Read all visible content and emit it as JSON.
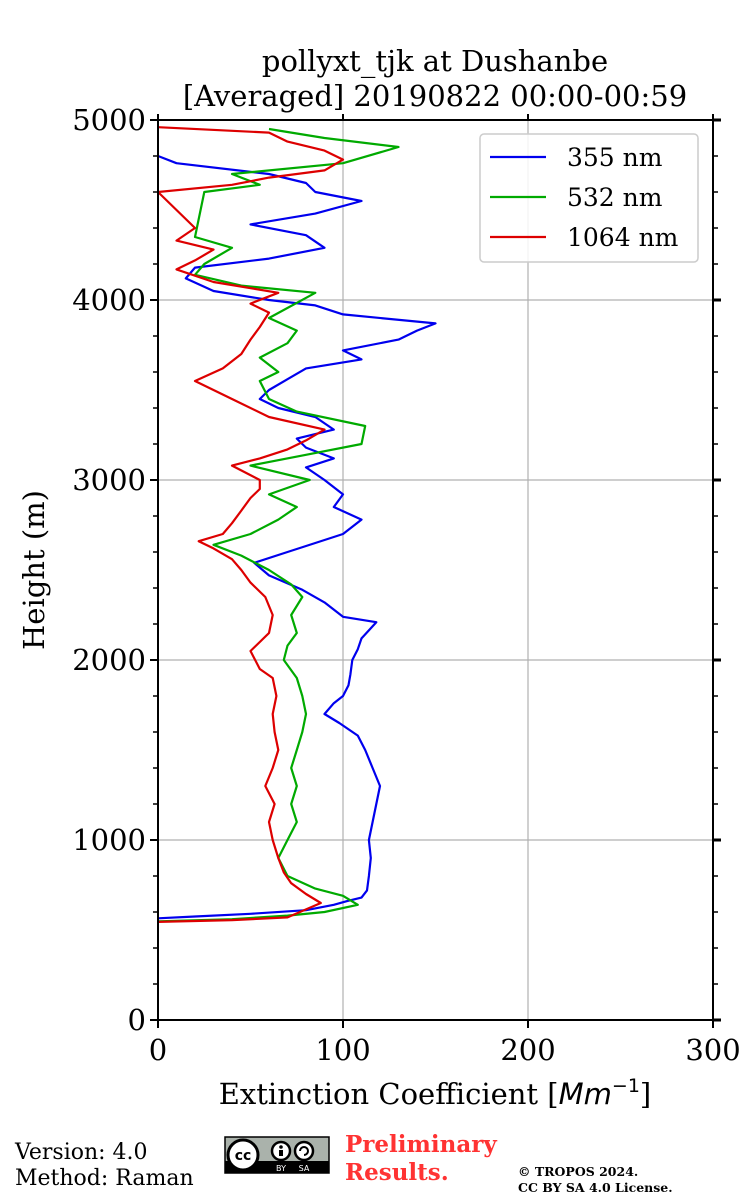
{
  "chart_data": {
    "type": "line",
    "title": "pollyxt_tjk at Dushanbe",
    "subtitle": "[Averaged] 20190822 00:00-00:59",
    "xlabel": "Extinction Coefficient [",
    "xlabel_unit": "Mm",
    "xlabel_exp": "−1",
    "xlabel_close": "]",
    "ylabel": "Height (m)",
    "xlim": [
      0,
      300
    ],
    "ylim": [
      0,
      5000
    ],
    "x_ticks": [
      0,
      100,
      200,
      300
    ],
    "x_tick_labels": [
      "0",
      "100",
      "200",
      "300"
    ],
    "y_ticks": [
      0,
      1000,
      2000,
      3000,
      4000,
      5000
    ],
    "y_tick_labels": [
      "0",
      "1000",
      "2000",
      "3000",
      "4000",
      "5000"
    ],
    "y_minor_step": 200,
    "grid": true,
    "legend_position": "top-right",
    "series": [
      {
        "name": "355 nm",
        "color": "#0000ee",
        "points": [
          [
            0,
            565
          ],
          [
            20,
            575
          ],
          [
            50,
            590
          ],
          [
            80,
            610
          ],
          [
            95,
            640
          ],
          [
            102,
            660
          ],
          [
            110,
            680
          ],
          [
            113,
            720
          ],
          [
            114,
            800
          ],
          [
            115,
            900
          ],
          [
            114,
            1000
          ],
          [
            116,
            1100
          ],
          [
            118,
            1200
          ],
          [
            120,
            1300
          ],
          [
            116,
            1400
          ],
          [
            112,
            1500
          ],
          [
            108,
            1580
          ],
          [
            98,
            1650
          ],
          [
            90,
            1700
          ],
          [
            95,
            1760
          ],
          [
            100,
            1800
          ],
          [
            103,
            1860
          ],
          [
            104,
            1920
          ],
          [
            105,
            2000
          ],
          [
            108,
            2060
          ],
          [
            110,
            2120
          ],
          [
            118,
            2210
          ],
          [
            100,
            2240
          ],
          [
            90,
            2320
          ],
          [
            78,
            2390
          ],
          [
            60,
            2470
          ],
          [
            52,
            2540
          ],
          [
            70,
            2600
          ],
          [
            85,
            2650
          ],
          [
            100,
            2700
          ],
          [
            110,
            2780
          ],
          [
            95,
            2850
          ],
          [
            100,
            2920
          ],
          [
            90,
            3000
          ],
          [
            80,
            3070
          ],
          [
            95,
            3120
          ],
          [
            80,
            3180
          ],
          [
            75,
            3230
          ],
          [
            95,
            3280
          ],
          [
            85,
            3350
          ],
          [
            65,
            3400
          ],
          [
            55,
            3450
          ],
          [
            60,
            3500
          ],
          [
            70,
            3560
          ],
          [
            80,
            3620
          ],
          [
            110,
            3670
          ],
          [
            100,
            3720
          ],
          [
            130,
            3780
          ],
          [
            140,
            3830
          ],
          [
            150,
            3870
          ],
          [
            100,
            3920
          ],
          [
            85,
            3970
          ],
          [
            60,
            4000
          ],
          [
            30,
            4050
          ],
          [
            15,
            4120
          ],
          [
            20,
            4180
          ],
          [
            60,
            4230
          ],
          [
            90,
            4290
          ],
          [
            80,
            4360
          ],
          [
            50,
            4420
          ],
          [
            85,
            4480
          ],
          [
            110,
            4550
          ],
          [
            85,
            4600
          ],
          [
            80,
            4650
          ],
          [
            60,
            4700
          ],
          [
            10,
            4760
          ],
          [
            0,
            4800
          ]
        ]
      },
      {
        "name": "532 nm",
        "color": "#00aa00",
        "points": [
          [
            0,
            548
          ],
          [
            40,
            560
          ],
          [
            70,
            580
          ],
          [
            90,
            600
          ],
          [
            108,
            640
          ],
          [
            100,
            690
          ],
          [
            85,
            730
          ],
          [
            70,
            800
          ],
          [
            65,
            900
          ],
          [
            70,
            1000
          ],
          [
            75,
            1100
          ],
          [
            72,
            1200
          ],
          [
            75,
            1300
          ],
          [
            72,
            1400
          ],
          [
            75,
            1500
          ],
          [
            78,
            1600
          ],
          [
            80,
            1700
          ],
          [
            78,
            1800
          ],
          [
            75,
            1900
          ],
          [
            68,
            2000
          ],
          [
            70,
            2080
          ],
          [
            75,
            2150
          ],
          [
            72,
            2250
          ],
          [
            78,
            2350
          ],
          [
            72,
            2420
          ],
          [
            60,
            2500
          ],
          [
            45,
            2580
          ],
          [
            30,
            2640
          ],
          [
            50,
            2700
          ],
          [
            65,
            2780
          ],
          [
            75,
            2850
          ],
          [
            60,
            2920
          ],
          [
            82,
            3000
          ],
          [
            50,
            3080
          ],
          [
            80,
            3140
          ],
          [
            110,
            3200
          ],
          [
            112,
            3300
          ],
          [
            75,
            3380
          ],
          [
            60,
            3450
          ],
          [
            55,
            3550
          ],
          [
            65,
            3600
          ],
          [
            55,
            3680
          ],
          [
            70,
            3760
          ],
          [
            75,
            3830
          ],
          [
            60,
            3900
          ],
          [
            85,
            4040
          ],
          [
            45,
            4080
          ],
          [
            20,
            4140
          ],
          [
            25,
            4200
          ],
          [
            40,
            4290
          ],
          [
            20,
            4350
          ],
          [
            25,
            4600
          ],
          [
            55,
            4640
          ],
          [
            40,
            4700
          ],
          [
            100,
            4760
          ],
          [
            130,
            4850
          ],
          [
            90,
            4900
          ],
          [
            60,
            4950
          ]
        ]
      },
      {
        "name": "1064 nm",
        "color": "#dd0000",
        "points": [
          [
            0,
            545
          ],
          [
            40,
            555
          ],
          [
            70,
            570
          ],
          [
            88,
            650
          ],
          [
            80,
            700
          ],
          [
            72,
            760
          ],
          [
            68,
            820
          ],
          [
            65,
            900
          ],
          [
            62,
            1000
          ],
          [
            60,
            1100
          ],
          [
            63,
            1200
          ],
          [
            58,
            1300
          ],
          [
            62,
            1400
          ],
          [
            65,
            1500
          ],
          [
            63,
            1600
          ],
          [
            62,
            1700
          ],
          [
            64,
            1800
          ],
          [
            62,
            1900
          ],
          [
            55,
            1950
          ],
          [
            50,
            2050
          ],
          [
            55,
            2100
          ],
          [
            60,
            2150
          ],
          [
            62,
            2250
          ],
          [
            58,
            2350
          ],
          [
            50,
            2430
          ],
          [
            45,
            2500
          ],
          [
            40,
            2560
          ],
          [
            30,
            2620
          ],
          [
            22,
            2660
          ],
          [
            35,
            2700
          ],
          [
            40,
            2760
          ],
          [
            45,
            2830
          ],
          [
            50,
            2900
          ],
          [
            55,
            2950
          ],
          [
            55,
            3000
          ],
          [
            40,
            3080
          ],
          [
            55,
            3120
          ],
          [
            70,
            3170
          ],
          [
            80,
            3220
          ],
          [
            90,
            3280
          ],
          [
            60,
            3350
          ],
          [
            40,
            3450
          ],
          [
            20,
            3550
          ],
          [
            35,
            3620
          ],
          [
            45,
            3700
          ],
          [
            50,
            3780
          ],
          [
            55,
            3850
          ],
          [
            60,
            3930
          ],
          [
            50,
            3980
          ],
          [
            65,
            4040
          ],
          [
            30,
            4100
          ],
          [
            10,
            4170
          ],
          [
            20,
            4220
          ],
          [
            30,
            4280
          ],
          [
            10,
            4330
          ],
          [
            20,
            4400
          ],
          [
            0,
            4600
          ],
          [
            40,
            4640
          ],
          [
            60,
            4680
          ],
          [
            90,
            4720
          ],
          [
            100,
            4780
          ],
          [
            90,
            4830
          ],
          [
            70,
            4880
          ],
          [
            60,
            4930
          ],
          [
            0,
            4960
          ]
        ]
      }
    ]
  },
  "footer": {
    "version": "Version: 4.0",
    "method": "Method: Raman",
    "preliminary_line1": "Preliminary",
    "preliminary_line2": "Results.",
    "copyright_line1": "© TROPOS 2024.",
    "copyright_line2": "CC BY SA 4.0 License."
  },
  "license_badge": {
    "cc_label": "cc",
    "by_label": "BY",
    "sa_label": "SA"
  }
}
